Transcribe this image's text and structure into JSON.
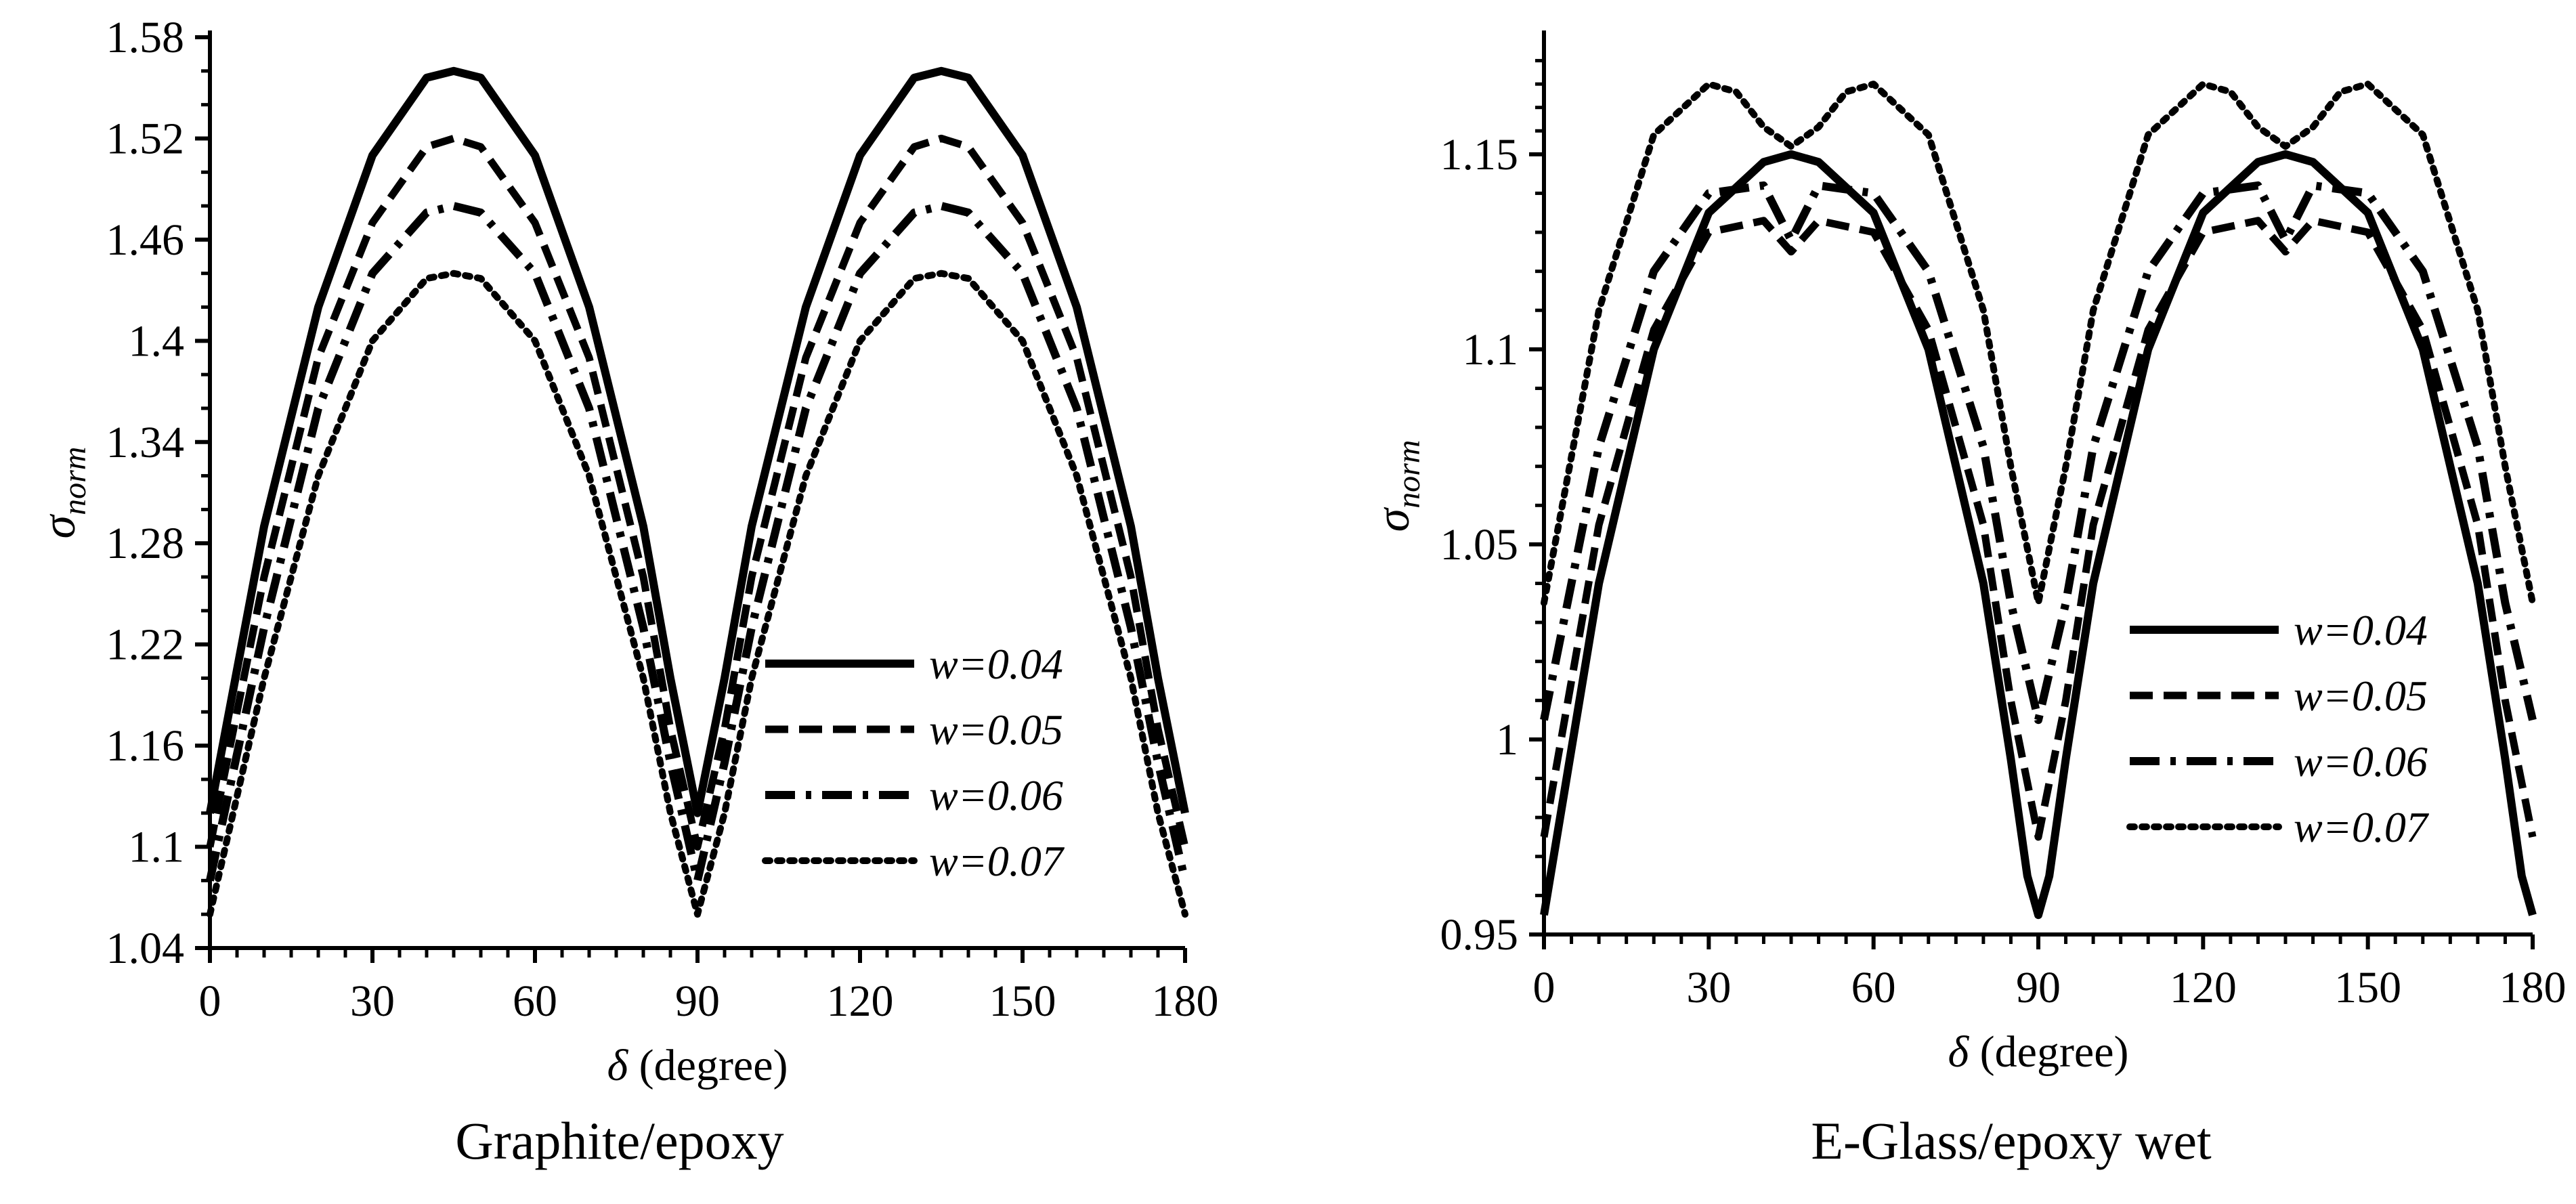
{
  "chart_data": [
    {
      "type": "line",
      "caption": "Graphite/epoxy",
      "xlabel_symbol": "δ",
      "xlabel": "(degree)",
      "ylabel_symbol": "σ",
      "ylabel_subscript": "norm",
      "xlim": [
        0,
        180
      ],
      "ylim": [
        1.04,
        1.58
      ],
      "xticks": [
        "0",
        "30",
        "60",
        "90",
        "120",
        "150",
        "180"
      ],
      "yticks": [
        "1.04",
        "1.1",
        "1.16",
        "1.22",
        "1.28",
        "1.34",
        "1.4",
        "1.46",
        "1.52",
        "1.58"
      ],
      "legend": [
        "w=0.04",
        "w=0.05",
        "w=0.06",
        "w=0.07"
      ],
      "legend_position": "bottom-right",
      "series": [
        {
          "name": "w=0.04",
          "style": "solid",
          "x": [
            0,
            10,
            20,
            30,
            40,
            45,
            50,
            60,
            70,
            80,
            85,
            90,
            95,
            100,
            110,
            120,
            130,
            135,
            140,
            150,
            160,
            170,
            175,
            180
          ],
          "y": [
            1.12,
            1.29,
            1.42,
            1.51,
            1.556,
            1.56,
            1.556,
            1.51,
            1.42,
            1.29,
            1.2,
            1.12,
            1.2,
            1.29,
            1.42,
            1.51,
            1.556,
            1.56,
            1.556,
            1.51,
            1.42,
            1.29,
            1.2,
            1.12
          ]
        },
        {
          "name": "w=0.05",
          "style": "dashed",
          "x": [
            0,
            10,
            20,
            30,
            40,
            45,
            50,
            60,
            70,
            80,
            85,
            90,
            95,
            100,
            110,
            120,
            130,
            135,
            140,
            150,
            160,
            170,
            175,
            180
          ],
          "y": [
            1.1,
            1.26,
            1.39,
            1.47,
            1.515,
            1.52,
            1.515,
            1.47,
            1.39,
            1.26,
            1.17,
            1.1,
            1.17,
            1.26,
            1.39,
            1.47,
            1.515,
            1.52,
            1.515,
            1.47,
            1.39,
            1.26,
            1.17,
            1.1
          ]
        },
        {
          "name": "w=0.06",
          "style": "dashdot",
          "x": [
            0,
            10,
            20,
            30,
            40,
            45,
            50,
            60,
            70,
            80,
            85,
            90,
            95,
            100,
            110,
            120,
            130,
            135,
            140,
            150,
            160,
            170,
            175,
            180
          ],
          "y": [
            1.08,
            1.23,
            1.36,
            1.44,
            1.476,
            1.48,
            1.476,
            1.44,
            1.36,
            1.23,
            1.15,
            1.08,
            1.15,
            1.23,
            1.36,
            1.44,
            1.476,
            1.48,
            1.476,
            1.44,
            1.36,
            1.23,
            1.15,
            1.08
          ]
        },
        {
          "name": "w=0.07",
          "style": "dotted",
          "x": [
            0,
            10,
            20,
            30,
            40,
            45,
            50,
            60,
            70,
            80,
            85,
            90,
            95,
            100,
            110,
            120,
            130,
            135,
            140,
            150,
            160,
            170,
            175,
            180
          ],
          "y": [
            1.06,
            1.2,
            1.32,
            1.4,
            1.437,
            1.44,
            1.437,
            1.4,
            1.32,
            1.2,
            1.12,
            1.06,
            1.12,
            1.2,
            1.32,
            1.4,
            1.437,
            1.44,
            1.437,
            1.4,
            1.32,
            1.2,
            1.12,
            1.06
          ]
        }
      ]
    },
    {
      "type": "line",
      "caption": "E-Glass/epoxy wet",
      "xlabel_symbol": "δ",
      "xlabel": "(degree)",
      "ylabel_symbol": "σ",
      "ylabel_subscript": "norm",
      "xlim": [
        0,
        180
      ],
      "ylim": [
        0.95,
        1.18
      ],
      "xticks": [
        "0",
        "30",
        "60",
        "90",
        "120",
        "150",
        "180"
      ],
      "yticks": [
        "0.95",
        "1",
        "1.05",
        "1.1",
        "1.15"
      ],
      "ytick_values": [
        0.95,
        1.0,
        1.05,
        1.1,
        1.15
      ],
      "legend": [
        "w=0.04",
        "w=0.05",
        "w=0.06",
        "w=0.07"
      ],
      "legend_position": "bottom-right",
      "series": [
        {
          "name": "w=0.04",
          "style": "solid",
          "x": [
            0,
            10,
            20,
            30,
            40,
            45,
            50,
            60,
            70,
            80,
            85,
            88,
            90,
            92,
            95,
            100,
            110,
            120,
            130,
            135,
            140,
            150,
            160,
            170,
            175,
            178,
            180
          ],
          "y": [
            0.955,
            1.04,
            1.1,
            1.135,
            1.148,
            1.15,
            1.148,
            1.135,
            1.1,
            1.04,
            0.995,
            0.965,
            0.955,
            0.965,
            0.995,
            1.04,
            1.1,
            1.135,
            1.148,
            1.15,
            1.148,
            1.135,
            1.1,
            1.04,
            0.995,
            0.965,
            0.955
          ]
        },
        {
          "name": "w=0.05",
          "style": "dashed",
          "x": [
            0,
            10,
            20,
            30,
            40,
            45,
            50,
            60,
            70,
            80,
            85,
            90,
            95,
            100,
            110,
            120,
            130,
            135,
            140,
            150,
            160,
            170,
            175,
            180
          ],
          "y": [
            0.975,
            1.055,
            1.105,
            1.13,
            1.133,
            1.125,
            1.133,
            1.13,
            1.105,
            1.055,
            1.01,
            0.975,
            1.01,
            1.055,
            1.105,
            1.13,
            1.133,
            1.125,
            1.133,
            1.13,
            1.105,
            1.055,
            1.01,
            0.975
          ]
        },
        {
          "name": "w=0.06",
          "style": "dashdot",
          "x": [
            0,
            10,
            20,
            30,
            40,
            45,
            50,
            60,
            70,
            80,
            85,
            90,
            95,
            100,
            110,
            120,
            130,
            135,
            140,
            150,
            160,
            170,
            175,
            180
          ],
          "y": [
            1.005,
            1.075,
            1.12,
            1.14,
            1.142,
            1.128,
            1.142,
            1.14,
            1.12,
            1.075,
            1.035,
            1.005,
            1.035,
            1.075,
            1.12,
            1.14,
            1.142,
            1.128,
            1.142,
            1.14,
            1.12,
            1.075,
            1.035,
            1.005
          ]
        },
        {
          "name": "w=0.07",
          "style": "dotted",
          "x": [
            0,
            10,
            20,
            30,
            35,
            40,
            45,
            50,
            55,
            60,
            70,
            80,
            85,
            90,
            95,
            100,
            110,
            120,
            125,
            130,
            135,
            140,
            145,
            150,
            160,
            170,
            175,
            180
          ],
          "y": [
            1.035,
            1.11,
            1.155,
            1.168,
            1.166,
            1.157,
            1.152,
            1.157,
            1.166,
            1.168,
            1.155,
            1.11,
            1.07,
            1.035,
            1.07,
            1.11,
            1.155,
            1.168,
            1.166,
            1.157,
            1.152,
            1.157,
            1.166,
            1.168,
            1.155,
            1.11,
            1.07,
            1.035
          ]
        }
      ]
    }
  ]
}
